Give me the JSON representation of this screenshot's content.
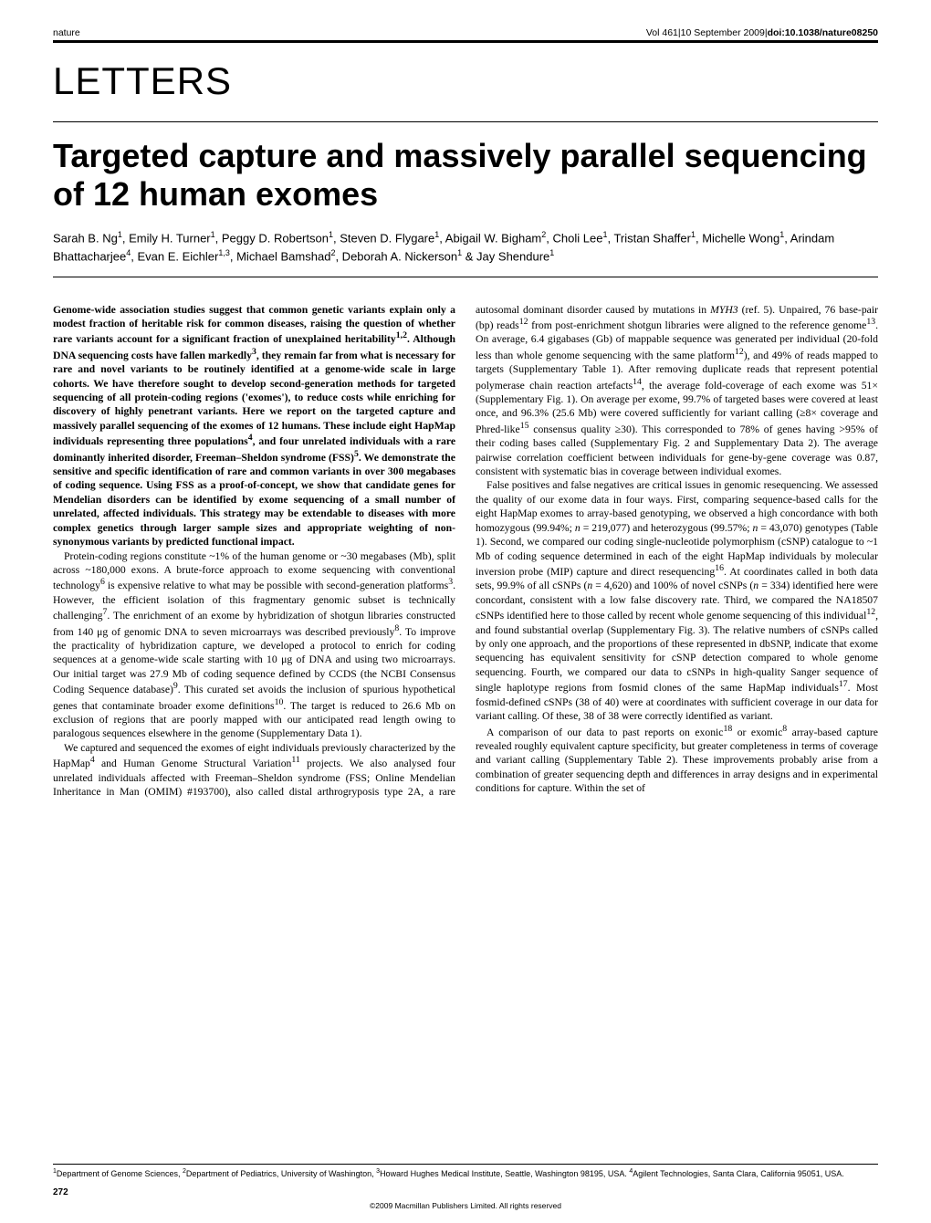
{
  "header": {
    "journal": "nature",
    "volume": "Vol 461",
    "date": "10 September 2009",
    "doi": "doi:10.1038/nature08250"
  },
  "section_label": "LETTERS",
  "title": "Targeted capture and massively parallel sequencing of 12 human exomes",
  "authors_html": "Sarah B. Ng<sup>1</sup>, Emily H. Turner<sup>1</sup>, Peggy D. Robertson<sup>1</sup>, Steven D. Flygare<sup>1</sup>, Abigail W. Bigham<sup>2</sup>, Choli Lee<sup>1</sup>, Tristan Shaffer<sup>1</sup>, Michelle Wong<sup>1</sup>, Arindam Bhattacharjee<sup>4</sup>, Evan E. Eichler<sup>1,3</sup>, Michael Bamshad<sup>2</sup>, Deborah A. Nickerson<sup>1</sup> & Jay Shendure<sup>1</sup>",
  "abstract": "Genome-wide association studies suggest that common genetic variants explain only a modest fraction of heritable risk for common diseases, raising the question of whether rare variants account for a significant fraction of unexplained heritability<sup>1,2</sup>. Although DNA sequencing costs have fallen markedly<sup>3</sup>, they remain far from what is necessary for rare and novel variants to be routinely identified at a genome-wide scale in large cohorts. We have therefore sought to develop second-generation methods for targeted sequencing of all protein-coding regions ('exomes'), to reduce costs while enriching for discovery of highly penetrant variants. Here we report on the targeted capture and massively parallel sequencing of the exomes of 12 humans. These include eight HapMap individuals representing three populations<sup>4</sup>, and four unrelated individuals with a rare dominantly inherited disorder, Freeman–Sheldon syndrome (FSS)<sup>5</sup>. We demonstrate the sensitive and specific identification of rare and common variants in over 300 megabases of coding sequence. Using FSS as a proof-of-concept, we show that candidate genes for Mendelian disorders can be identified by exome sequencing of a small number of unrelated, affected individuals. This strategy may be extendable to diseases with more complex genetics through larger sample sizes and appropriate weighting of non-synonymous variants by predicted functional impact.",
  "body": [
    "Protein-coding regions constitute ~1% of the human genome or ~30 megabases (Mb), split across ~180,000 exons. A brute-force approach to exome sequencing with conventional technology<sup>6</sup> is expensive relative to what may be possible with second-generation platforms<sup>3</sup>. However, the efficient isolation of this fragmentary genomic subset is technically challenging<sup>7</sup>. The enrichment of an exome by hybridization of shotgun libraries constructed from 140 μg of genomic DNA to seven microarrays was described previously<sup>8</sup>. To improve the practicality of hybridization capture, we developed a protocol to enrich for coding sequences at a genome-wide scale starting with 10 μg of DNA and using two microarrays. Our initial target was 27.9 Mb of coding sequence defined by CCDS (the NCBI Consensus Coding Sequence database)<sup>9</sup>. This curated set avoids the inclusion of spurious hypothetical genes that contaminate broader exome definitions<sup>10</sup>. The target is reduced to 26.6 Mb on exclusion of regions that are poorly mapped with our anticipated read length owing to paralogous sequences elsewhere in the genome (Supplementary Data 1).",
    "We captured and sequenced the exomes of eight individuals previously characterized by the HapMap<sup>4</sup> and Human Genome Structural Variation<sup>11</sup> projects. We also analysed four unrelated individuals affected with Freeman–Sheldon syndrome (FSS; Online Mendelian Inheritance in Man (OMIM) #193700), also called distal arthrogryposis type 2A, a rare autosomal dominant disorder caused by mutations in <i>MYH3</i> (ref. 5). Unpaired, 76 base-pair (bp) reads<sup>12</sup> from post-enrichment shotgun libraries were aligned to the reference genome<sup>13</sup>. On average, 6.4 gigabases (Gb) of mappable sequence was generated per individual (20-fold less than whole genome sequencing with the same platform<sup>12</sup>), and 49% of reads mapped to targets (Supplementary Table 1). After removing duplicate reads that represent potential polymerase chain reaction artefacts<sup>14</sup>, the average fold-coverage of each exome was 51× (Supplementary Fig. 1). On average per exome, 99.7% of targeted bases were covered at least once, and 96.3% (25.6 Mb) were covered sufficiently for variant calling (≥8× coverage and Phred-like<sup>15</sup> consensus quality ≥30). This corresponded to 78% of genes having >95% of their coding bases called (Supplementary Fig. 2 and Supplementary Data 2). The average pairwise correlation coefficient between individuals for gene-by-gene coverage was 0.87, consistent with systematic bias in coverage between individual exomes.",
    "False positives and false negatives are critical issues in genomic resequencing. We assessed the quality of our exome data in four ways. First, comparing sequence-based calls for the eight HapMap exomes to array-based genotyping, we observed a high concordance with both homozygous (99.94%; <i>n</i> = 219,077) and heterozygous (99.57%; <i>n</i> = 43,070) genotypes (Table 1). Second, we compared our coding single-nucleotide polymorphism (cSNP) catalogue to ~1 Mb of coding sequence determined in each of the eight HapMap individuals by molecular inversion probe (MIP) capture and direct resequencing<sup>16</sup>. At coordinates called in both data sets, 99.9% of all cSNPs (<i>n</i> = 4,620) and 100% of novel cSNPs (<i>n</i> = 334) identified here were concordant, consistent with a low false discovery rate. Third, we compared the NA18507 cSNPs identified here to those called by recent whole genome sequencing of this individual<sup>12</sup>, and found substantial overlap (Supplementary Fig. 3). The relative numbers of cSNPs called by only one approach, and the proportions of these represented in dbSNP, indicate that exome sequencing has equivalent sensitivity for cSNP detection compared to whole genome sequencing. Fourth, we compared our data to cSNPs in high-quality Sanger sequence of single haplotype regions from fosmid clones of the same HapMap individuals<sup>17</sup>. Most fosmid-defined cSNPs (38 of 40) were at coordinates with sufficient coverage in our data for variant calling. Of these, 38 of 38 were correctly identified as variant.",
    "A comparison of our data to past reports on exonic<sup>18</sup> or exomic<sup>8</sup> array-based capture revealed roughly equivalent capture specificity, but greater completeness in terms of coverage and variant calling (Supplementary Table 2). These improvements probably arise from a combination of greater sequencing depth and differences in array designs and in experimental conditions for capture. Within the set of"
  ],
  "affiliations_html": "<sup>1</sup>Department of Genome Sciences, <sup>2</sup>Department of Pediatrics, University of Washington, <sup>3</sup>Howard Hughes Medical Institute, Seattle, Washington 98195, USA. <sup>4</sup>Agilent Technologies, Santa Clara, California 95051, USA.",
  "page_number": "272",
  "copyright": "©2009 Macmillan Publishers Limited. All rights reserved"
}
